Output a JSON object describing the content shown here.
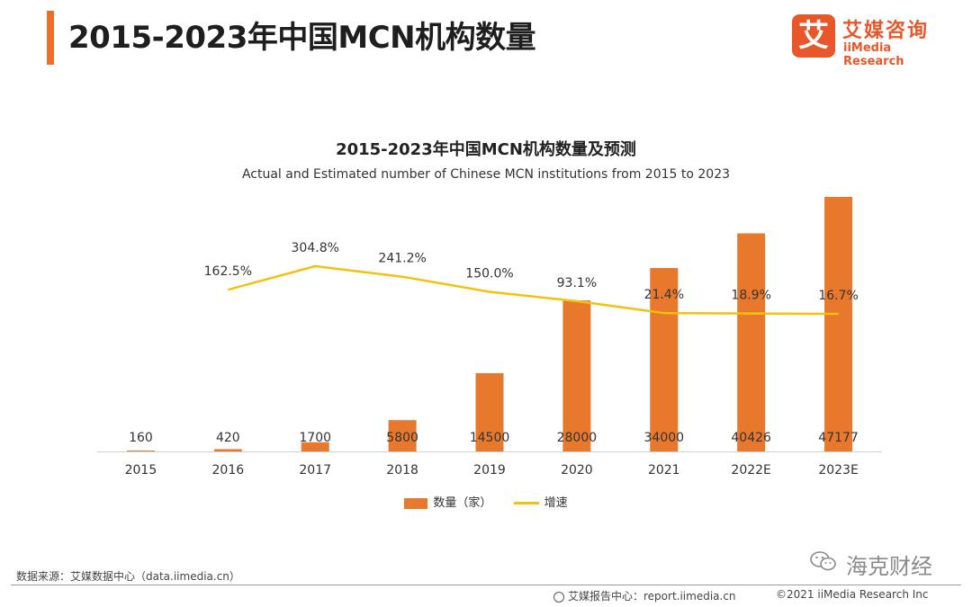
{
  "header": {
    "title": "2015-2023年中国MCN机构数量"
  },
  "logo": {
    "mark": "艾",
    "name_cn": "艾媒咨询",
    "name_en": "iiMedia Research"
  },
  "chart_data": {
    "type": "bar",
    "title": "2015-2023年中国MCN机构数量及预测",
    "subtitle": "Actual and Estimated number of Chinese MCN institutions from 2015 to 2023",
    "categories": [
      "2015",
      "2016",
      "2017",
      "2018",
      "2019",
      "2020",
      "2021",
      "2022E",
      "2023E"
    ],
    "series": [
      {
        "name": "数量（家）",
        "type": "bar",
        "color": "#e8792c",
        "values": [
          160,
          420,
          1700,
          5800,
          14500,
          28000,
          34000,
          40426,
          47177
        ],
        "labels": [
          "160",
          "420",
          "1700",
          "5800",
          "14500",
          "28000",
          "34000",
          "40426",
          "47177"
        ]
      },
      {
        "name": "增速",
        "type": "line",
        "color": "#f2c20f",
        "values": [
          null,
          162.5,
          304.8,
          241.2,
          150.0,
          93.1,
          21.4,
          18.9,
          16.7
        ],
        "labels": [
          "",
          "162.5%",
          "304.8%",
          "241.2%",
          "150.0%",
          "93.1%",
          "21.4%",
          "18.9%",
          "16.7%"
        ]
      }
    ],
    "ylim": [
      0,
      47177
    ],
    "y2lim": [
      -700,
      400
    ],
    "legend_position": "bottom"
  },
  "legend": {
    "bar_label": "数量（家）",
    "line_label": "增速"
  },
  "source": "数据来源：艾媒数据中心（data.iimedia.cn）",
  "footer": {
    "report_center": "艾媒报告中心：report.iimedia.cn",
    "copyright": "©2021  iiMedia Research  Inc"
  },
  "watermark": {
    "text": "海克财经"
  }
}
